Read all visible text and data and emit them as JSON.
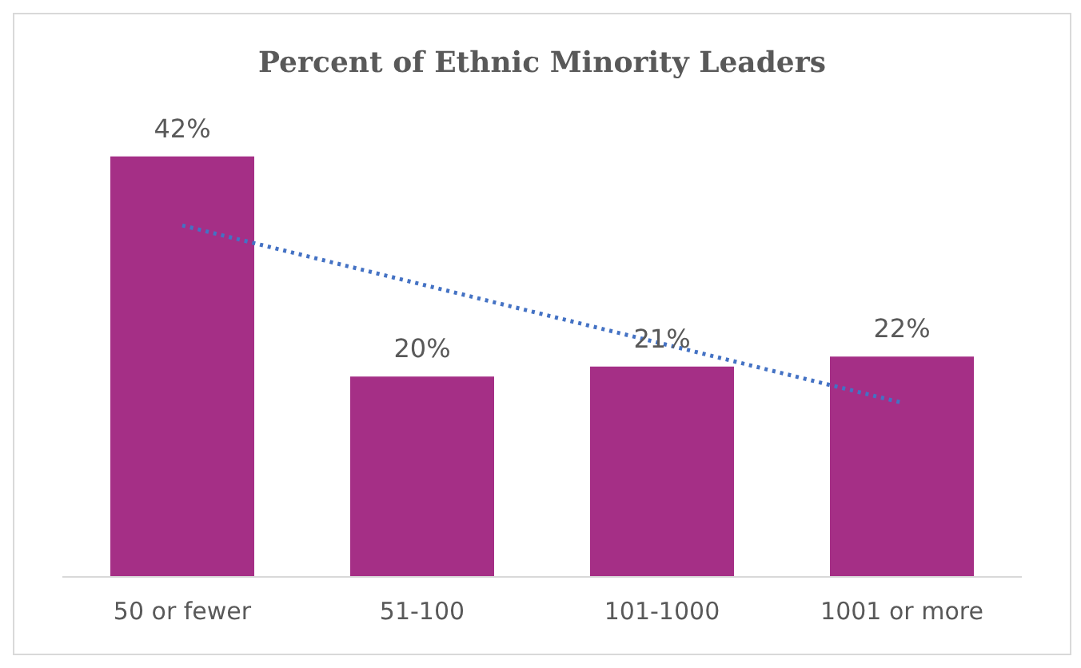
{
  "chart_data": {
    "type": "bar",
    "title": "Percent of Ethnic Minority Leaders",
    "categories": [
      "50 or fewer",
      "51-100",
      "101-1000",
      "1001 or more"
    ],
    "series": [
      {
        "color": "#a52f86",
        "values": [
          42,
          20,
          21,
          22
        ],
        "value_labels": [
          "42%",
          "20%",
          "21%",
          "22%"
        ]
      },
      {
        "type": "line",
        "color": "#4472c4",
        "x": [
          "50 or fewer",
          "1001 or more"
        ],
        "values": [
          35.1,
          17.4
        ],
        "line_style": "dotted"
      }
    ],
    "grid": false,
    "legend": false
  }
}
